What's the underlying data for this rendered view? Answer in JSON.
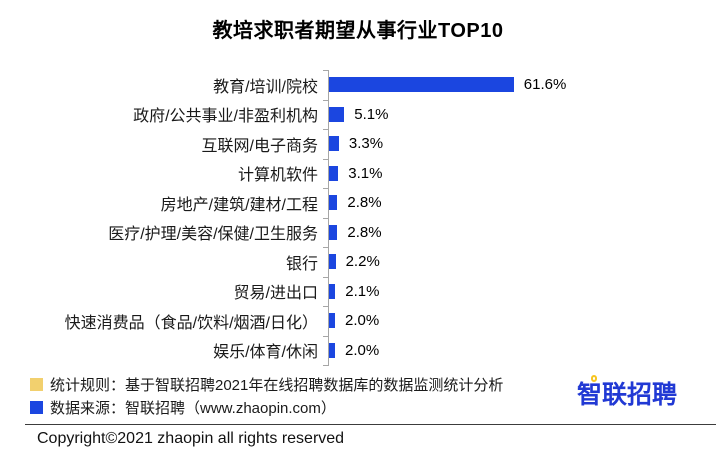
{
  "title": "教培求职者期望从事行业TOP10",
  "chart_data": {
    "type": "bar",
    "orientation": "horizontal",
    "title": "教培求职者期望从事行业TOP10",
    "categories": [
      "教育/培训/院校",
      "政府/公共事业/非盈利机构",
      "互联网/电子商务",
      "计算机软件",
      "房地产/建筑/建材/工程",
      "医疗/护理/美容/保健/卫生服务",
      "银行",
      "贸易/进出口",
      "快速消费品（食品/饮料/烟酒/日化）",
      "娱乐/体育/休闲"
    ],
    "values": [
      61.6,
      5.1,
      3.3,
      3.1,
      2.8,
      2.8,
      2.2,
      2.1,
      2.0,
      2.0
    ],
    "value_labels": [
      "61.6%",
      "5.1%",
      "3.3%",
      "3.1%",
      "2.8%",
      "2.8%",
      "2.2%",
      "2.1%",
      "2.0%",
      "2.0%"
    ],
    "unit": "%",
    "xlim": [
      0,
      65
    ],
    "grid": false,
    "legend_position": "none",
    "bar_color": "#1b46e0",
    "axis_color": "#a6a6a6"
  },
  "footer": {
    "legend": [
      {
        "color": "#f2d06e",
        "text": "统计规则：基于智联招聘2021年在线招聘数据库的数据监测统计分析"
      },
      {
        "color": "#1b46e0",
        "text": "数据来源：智联招聘（www.zhaopin.com）"
      }
    ],
    "logo_text": "智联招聘",
    "logo_color": "#2139d4",
    "logo_accent_color": "#f7c520",
    "copyright": "Copyright©2021 zhaopin all rights reserved"
  }
}
